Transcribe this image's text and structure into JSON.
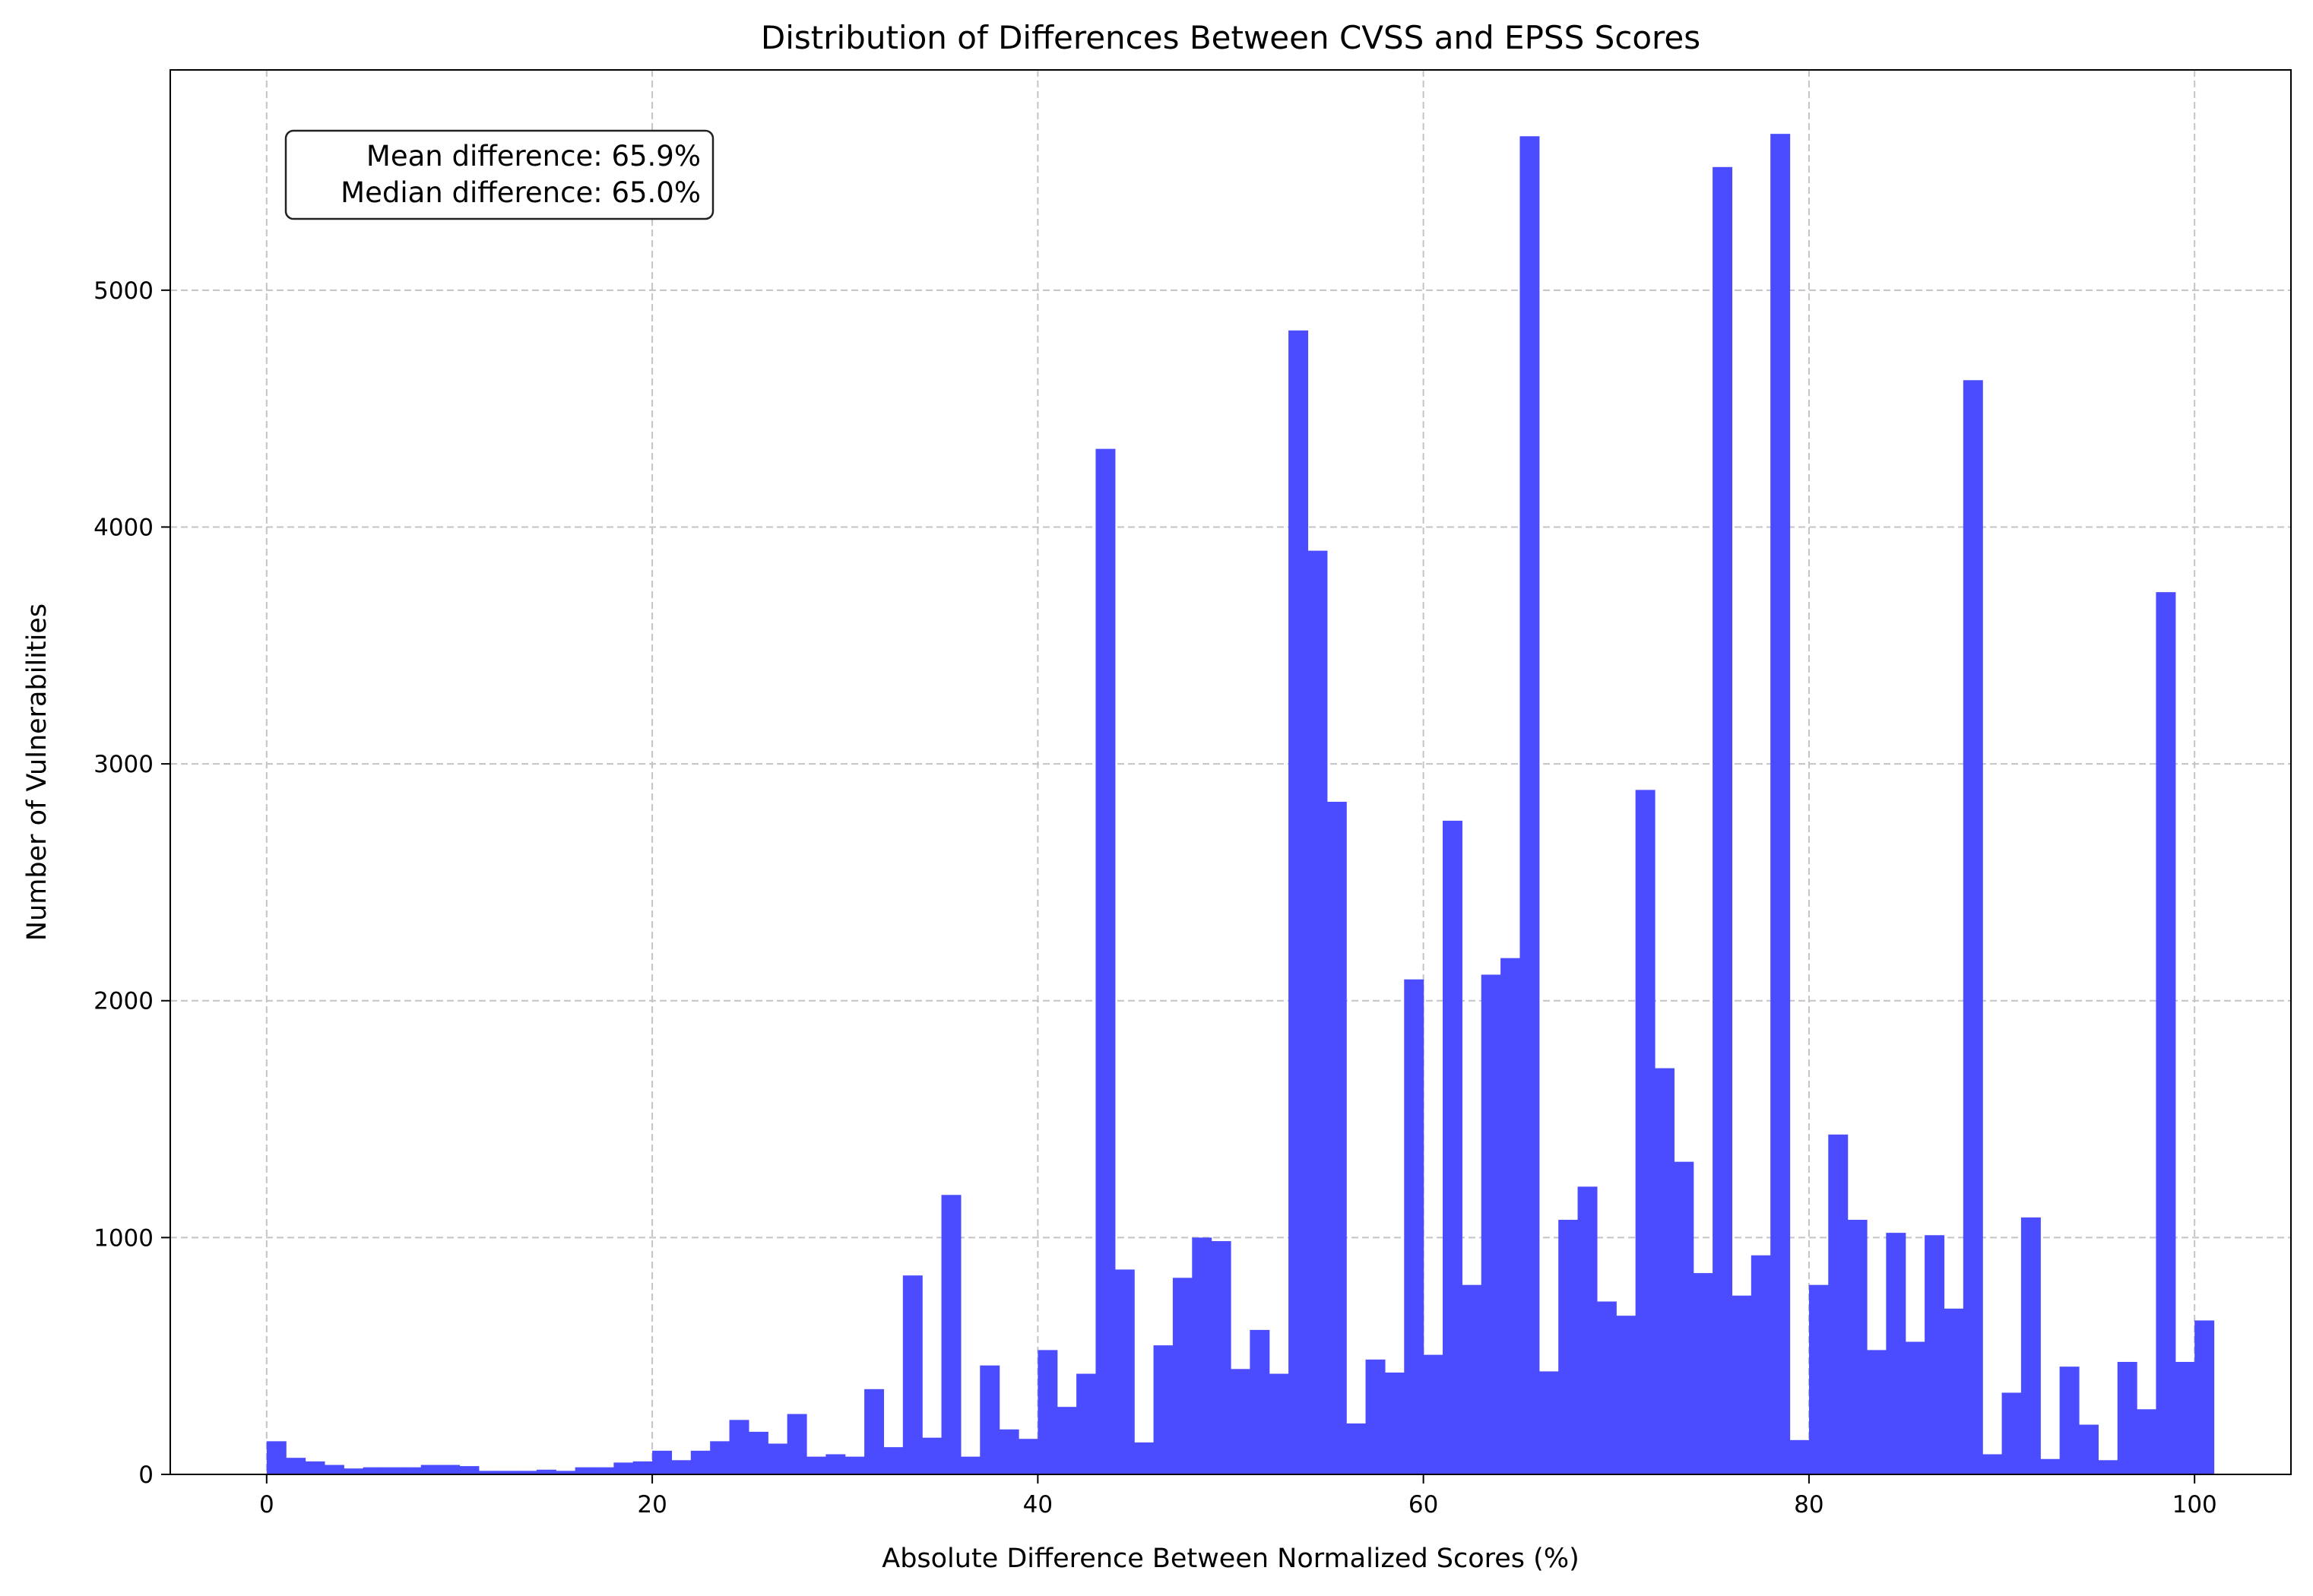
{
  "chart_data": {
    "type": "bar",
    "title": "Distribution of Differences Between CVSS and EPSS Scores",
    "xlabel": "Absolute Difference Between Normalized Scores (%)",
    "ylabel": "Number of Vulnerabilities",
    "xlim": [
      -5,
      105
    ],
    "ylim": [
      0,
      5930
    ],
    "xticks": [
      0,
      20,
      40,
      60,
      80,
      100
    ],
    "yticks": [
      0,
      1000,
      2000,
      3000,
      4000,
      5000
    ],
    "grid": true,
    "bin_start": 0,
    "bin_width": 1,
    "color": "#4b4bff",
    "annotation": [
      "Mean difference: 65.9%",
      "Median difference: 65.0%"
    ],
    "values": [
      140,
      70,
      55,
      40,
      25,
      30,
      30,
      30,
      40,
      40,
      35,
      15,
      15,
      15,
      20,
      15,
      30,
      30,
      50,
      55,
      100,
      60,
      100,
      140,
      230,
      180,
      130,
      255,
      75,
      85,
      75,
      360,
      115,
      840,
      155,
      1180,
      75,
      460,
      190,
      150,
      525,
      285,
      425,
      4330,
      865,
      135,
      545,
      830,
      1000,
      985,
      445,
      610,
      425,
      4830,
      3900,
      2840,
      215,
      485,
      430,
      2090,
      505,
      2760,
      800,
      2110,
      2180,
      5650,
      435,
      1075,
      1215,
      730,
      670,
      2890,
      1715,
      1320,
      850,
      5520,
      755,
      925,
      5660,
      145,
      800,
      1435,
      1075,
      525,
      1020,
      560,
      1010,
      700,
      4620,
      85,
      345,
      1085,
      65,
      455,
      210,
      60,
      475,
      275,
      3725,
      475,
      650
    ]
  }
}
